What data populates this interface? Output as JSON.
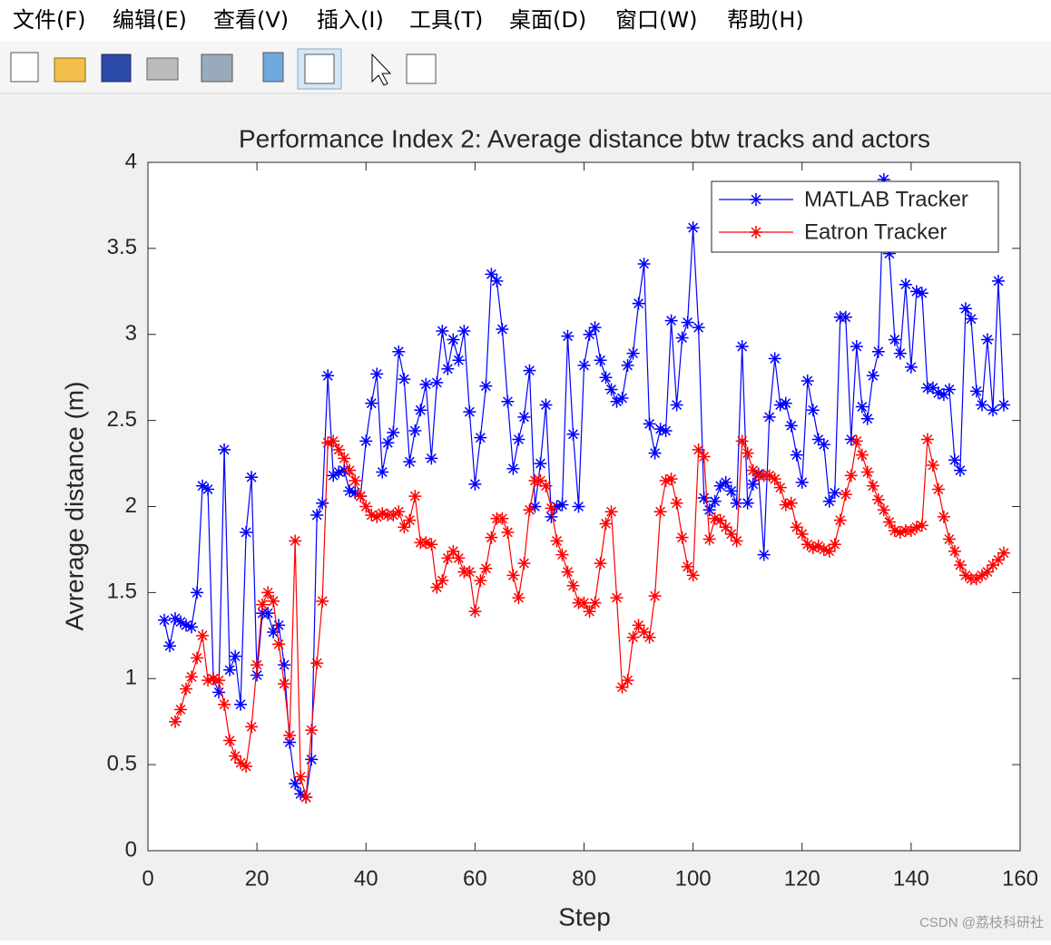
{
  "menu": [
    "文件(F)",
    "编辑(E)",
    "查看(V)",
    "插入(I)",
    "工具(T)",
    "桌面(D)",
    "窗口(W)",
    "帮助(H)"
  ],
  "watermark": "CSDN @荔枝科研社",
  "chart_data": {
    "type": "line",
    "title": "Performance Index 2: Average distance btw tracks and actors",
    "x_label": "Step",
    "y_label": "Avrerage distance (m)",
    "xlim": [
      0,
      160
    ],
    "xticks": [
      0,
      20,
      40,
      60,
      80,
      100,
      120,
      140,
      160
    ],
    "ylim": [
      0,
      4
    ],
    "yticks": [
      0,
      0.5,
      1,
      1.5,
      2,
      2.5,
      3,
      3.5,
      4
    ],
    "legend": "upper right",
    "marker": "asterisk",
    "x": [
      3,
      4,
      5,
      6,
      7,
      8,
      9,
      10,
      11,
      12,
      13,
      14,
      15,
      16,
      17,
      18,
      19,
      20,
      21,
      22,
      23,
      24,
      25,
      26,
      27,
      28,
      29,
      30,
      31,
      32,
      33,
      34,
      35,
      36,
      37,
      38,
      39,
      40,
      41,
      42,
      43,
      44,
      45,
      46,
      47,
      48,
      49,
      50,
      51,
      52,
      53,
      54,
      55,
      56,
      57,
      58,
      59,
      60,
      61,
      62,
      63,
      64,
      65,
      66,
      67,
      68,
      69,
      70,
      71,
      72,
      73,
      74,
      75,
      76,
      77,
      78,
      79,
      80,
      81,
      82,
      83,
      84,
      85,
      86,
      87,
      88,
      89,
      90,
      91,
      92,
      93,
      94,
      95,
      96,
      97,
      98,
      99,
      100,
      101,
      102,
      103,
      104,
      105,
      106,
      107,
      108,
      109,
      110,
      111,
      112,
      113,
      114,
      115,
      116,
      117,
      118,
      119,
      120,
      121,
      122,
      123,
      124,
      125,
      126,
      127,
      128,
      129,
      130,
      131,
      132,
      133,
      134,
      135,
      136,
      137,
      138,
      139,
      140,
      141,
      142,
      143,
      144,
      145,
      146,
      147,
      148,
      149,
      150,
      151,
      152,
      153,
      154,
      155,
      156,
      157
    ],
    "series": [
      {
        "name": "MATLAB Tracker",
        "color": "#0000ff",
        "values": [
          1.34,
          1.19,
          1.35,
          1.33,
          1.31,
          1.3,
          1.5,
          2.12,
          2.1,
          1.0,
          0.92,
          2.33,
          1.05,
          1.13,
          0.85,
          1.85,
          2.17,
          1.02,
          1.38,
          1.38,
          1.27,
          1.31,
          1.08,
          0.63,
          0.39,
          0.33,
          0.31,
          0.53,
          1.95,
          2.02,
          2.76,
          2.18,
          2.2,
          2.21,
          2.09,
          2.08,
          2.06,
          2.38,
          2.6,
          2.77,
          2.2,
          2.37,
          2.43,
          2.9,
          2.74,
          2.26,
          2.44,
          2.56,
          2.71,
          2.28,
          2.72,
          3.02,
          2.8,
          2.97,
          2.85,
          3.02,
          2.55,
          2.13,
          2.4,
          2.7,
          3.35,
          3.31,
          3.03,
          2.61,
          2.22,
          2.39,
          2.52,
          2.79,
          2.0,
          2.25,
          2.59,
          1.94,
          2.0,
          2.01,
          2.99,
          2.42,
          2.0,
          2.82,
          3.0,
          3.04,
          2.85,
          2.75,
          2.68,
          2.61,
          2.63,
          2.82,
          2.89,
          3.18,
          3.41,
          2.48,
          2.31,
          2.45,
          2.44,
          3.08,
          2.59,
          2.98,
          3.07,
          3.62,
          3.04,
          2.05,
          1.98,
          2.03,
          2.12,
          2.14,
          2.09,
          2.02,
          2.93,
          2.02,
          2.13,
          2.19,
          1.72,
          2.52,
          2.86,
          2.59,
          2.6,
          2.47,
          2.3,
          2.14,
          2.73,
          2.56,
          2.39,
          2.36,
          2.03,
          2.08,
          3.1,
          3.1,
          2.39,
          2.93,
          2.58,
          2.51,
          2.76,
          2.9,
          3.9,
          3.47,
          2.97,
          2.89,
          3.29,
          2.81,
          3.25,
          3.24,
          2.69,
          2.69,
          2.66,
          2.65,
          2.68,
          2.27,
          2.21,
          3.15,
          3.09,
          2.67,
          2.59,
          2.97,
          2.56,
          3.31,
          2.59
        ]
      },
      {
        "name": "Eatron Tracker",
        "color": "#ff0000",
        "values": [
          null,
          null,
          0.75,
          0.82,
          0.94,
          1.01,
          1.12,
          1.25,
          0.99,
          1.0,
          0.99,
          0.85,
          0.64,
          0.55,
          0.51,
          0.49,
          0.72,
          1.08,
          1.43,
          1.5,
          1.45,
          1.2,
          0.97,
          0.67,
          1.8,
          0.43,
          0.31,
          0.7,
          1.09,
          1.45,
          2.37,
          2.38,
          2.33,
          2.28,
          2.21,
          2.15,
          2.06,
          2.0,
          1.95,
          1.94,
          1.96,
          1.95,
          1.95,
          1.97,
          1.88,
          1.92,
          2.06,
          1.79,
          1.79,
          1.78,
          1.53,
          1.57,
          1.7,
          1.74,
          1.7,
          1.62,
          1.62,
          1.39,
          1.57,
          1.64,
          1.82,
          1.93,
          1.93,
          1.85,
          1.6,
          1.47,
          1.67,
          1.98,
          2.15,
          2.15,
          2.12,
          1.99,
          1.8,
          1.72,
          1.62,
          1.54,
          1.44,
          1.44,
          1.39,
          1.44,
          1.67,
          1.9,
          1.97,
          1.47,
          0.95,
          0.99,
          1.24,
          1.31,
          1.27,
          1.24,
          1.48,
          1.97,
          2.15,
          2.16,
          2.02,
          1.82,
          1.65,
          1.6,
          2.33,
          2.29,
          1.81,
          1.93,
          1.92,
          1.88,
          1.84,
          1.8,
          2.38,
          2.31,
          2.21,
          2.18,
          2.18,
          2.18,
          2.16,
          2.11,
          2.01,
          2.02,
          1.88,
          1.84,
          1.78,
          1.76,
          1.77,
          1.75,
          1.74,
          1.78,
          1.92,
          2.07,
          2.18,
          2.38,
          2.3,
          2.2,
          2.12,
          2.04,
          1.98,
          1.91,
          1.86,
          1.85,
          1.86,
          1.86,
          1.88,
          1.89,
          2.39,
          2.24,
          2.1,
          1.94,
          1.81,
          1.74,
          1.66,
          1.6,
          1.58,
          1.58,
          1.6,
          1.62,
          1.66,
          1.69,
          1.73
        ]
      }
    ]
  }
}
